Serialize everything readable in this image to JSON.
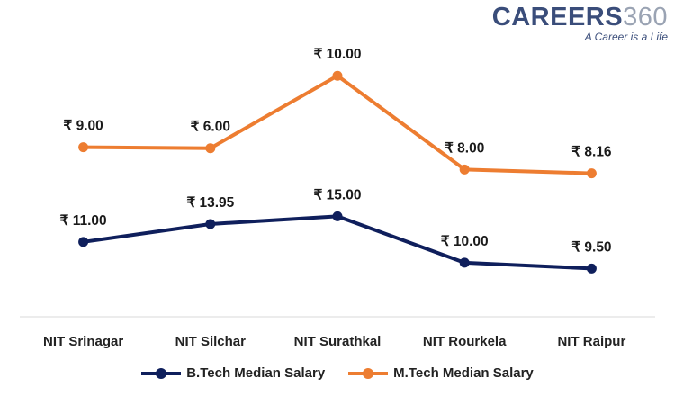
{
  "logo": {
    "brand": "CAREERS",
    "number": "360",
    "tagline": "A Career is a Life"
  },
  "chart_data": {
    "type": "line",
    "categories": [
      "NIT Srinagar",
      "NIT Silchar",
      "NIT Surathkal",
      "NIT Rourkela",
      "NIT Raipur"
    ],
    "series": [
      {
        "name": "B.Tech Median Salary",
        "color": "#0f1f5c",
        "values": [
          11.0,
          13.95,
          15.0,
          10.0,
          9.5
        ],
        "labels": [
          "₹ 11.00",
          "₹ 13.95",
          "₹ 15.00",
          "₹ 10.00",
          "₹ 9.50"
        ],
        "plot_values": [
          7.75,
          9.6,
          10.4,
          5.6,
          5.0
        ]
      },
      {
        "name": "M.Tech Median Salary",
        "color": "#ed7d31",
        "values": [
          9.0,
          6.0,
          10.0,
          8.0,
          8.16
        ],
        "labels": [
          "₹ 9.00",
          "₹ 6.00",
          "₹ 10.00",
          "₹ 8.00",
          "₹ 8.16"
        ],
        "plot_values": [
          17.55,
          17.45,
          24.95,
          15.25,
          14.85
        ]
      }
    ],
    "ylim": [
      0,
      30
    ],
    "grid": false,
    "legend_position": "bottom",
    "title": "",
    "xlabel": "",
    "ylabel": ""
  }
}
